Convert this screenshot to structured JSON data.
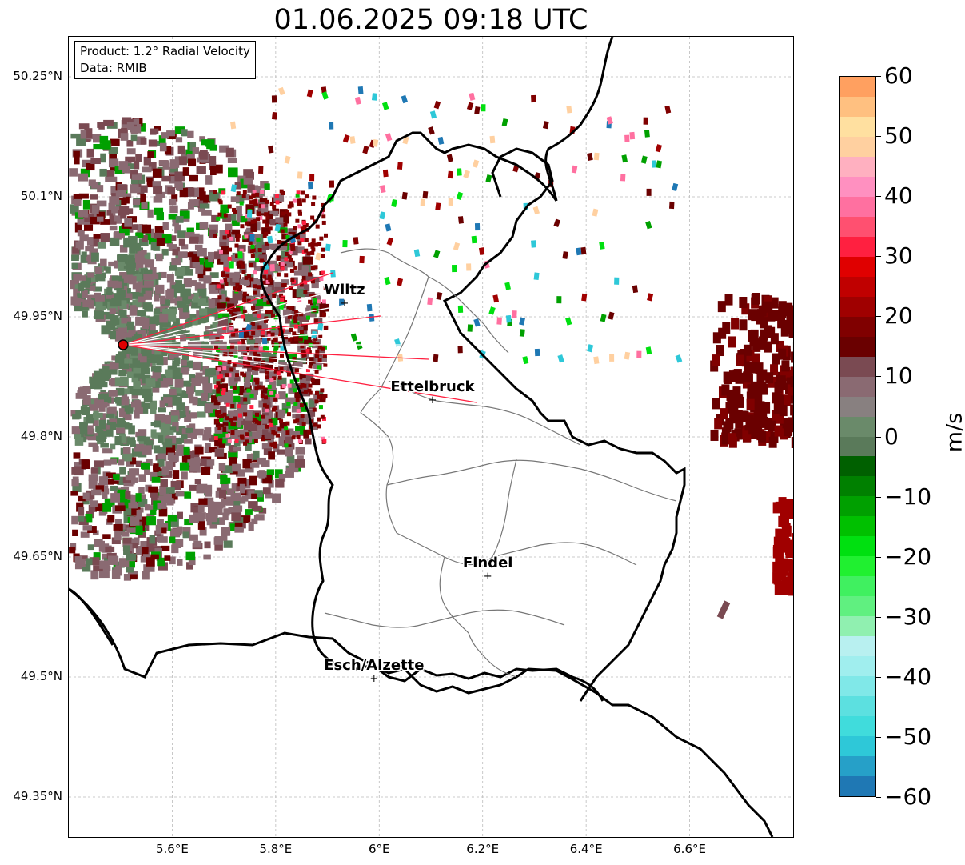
{
  "title": "01.06.2025 09:18 UTC",
  "product_box": {
    "product": "Product: 1.2° Radial Velocity",
    "data": "Data: RMIB"
  },
  "lat_ticks": [
    {
      "value": 50.25,
      "label": "50.25°N"
    },
    {
      "value": 50.1,
      "label": "50.1°N"
    },
    {
      "value": 49.95,
      "label": "49.95°N"
    },
    {
      "value": 49.8,
      "label": "49.8°N"
    },
    {
      "value": 49.65,
      "label": "49.65°N"
    },
    {
      "value": 49.5,
      "label": "49.5°N"
    },
    {
      "value": 49.35,
      "label": "49.35°N"
    }
  ],
  "lon_ticks": [
    {
      "value": 5.6,
      "label": "5.6°E"
    },
    {
      "value": 5.8,
      "label": "5.8°E"
    },
    {
      "value": 6.0,
      "label": "6°E"
    },
    {
      "value": 6.2,
      "label": "6.2°E"
    },
    {
      "value": 6.4,
      "label": "6.4°E"
    },
    {
      "value": 6.6,
      "label": "6.6°E"
    }
  ],
  "cities": [
    {
      "name": "Wiltz",
      "lon": 5.933,
      "lat": 49.968
    },
    {
      "name": "Ettelbruck",
      "lon": 6.103,
      "lat": 49.847
    },
    {
      "name": "Findel",
      "lon": 6.21,
      "lat": 49.627
    },
    {
      "name": "Esch/Alzette",
      "lon": 5.99,
      "lat": 49.499
    }
  ],
  "radar": {
    "lon": 5.505,
    "lat": 49.915
  },
  "colorbar": {
    "label": "m/s",
    "min": -60,
    "max": 60,
    "ticks": [
      "60",
      "50",
      "40",
      "30",
      "20",
      "10",
      "0",
      "−10",
      "−20",
      "−30",
      "−40",
      "−50",
      "−60"
    ],
    "colors": [
      "#1f78b4",
      "#26a0c8",
      "#2ec8d8",
      "#40dcdc",
      "#5ce0e0",
      "#80e8e8",
      "#a0eeee",
      "#b8f0f0",
      "#90f0b0",
      "#60f080",
      "#40f060",
      "#20f030",
      "#00e010",
      "#00c000",
      "#00a000",
      "#008000",
      "#006000",
      "#5a7a5a",
      "#6a8a6a",
      "#888080",
      "#8a6a72",
      "#7a4a52",
      "#6a0000",
      "#800000",
      "#a00000",
      "#c00000",
      "#e00000",
      "#ff2040",
      "#ff5070",
      "#ff70a0",
      "#ff90c0",
      "#ffb0c0",
      "#ffd0a0",
      "#ffe0a0",
      "#ffc080",
      "#ffa060"
    ]
  }
}
